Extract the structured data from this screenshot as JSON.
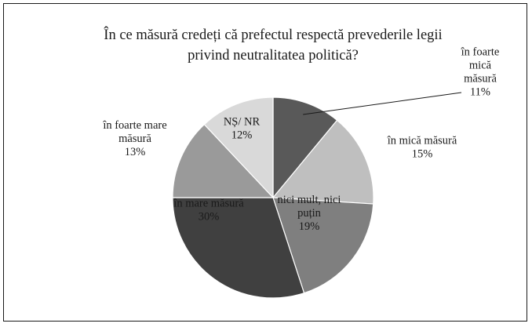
{
  "chart_data": {
    "type": "pie",
    "title": "În ce măsură credeți că prefectul respectă prevederile legii privind neutralitatea politică?",
    "title_lines": [
      "În ce măsură credeți că prefectul respectă prevederile legii",
      "privind neutralitatea politică?"
    ],
    "slices": [
      {
        "label": "în foarte mică măsură",
        "label_lines": [
          "în foarte",
          "mică",
          "măsură"
        ],
        "value": 11,
        "value_label": "11%",
        "color": "#595959"
      },
      {
        "label": "în mică măsură",
        "label_lines": [
          "în mică măsură"
        ],
        "value": 15,
        "value_label": "15%",
        "color": "#bfbfbf"
      },
      {
        "label": "nici mult, nici puțin",
        "label_lines": [
          "nici mult, nici",
          "puțin"
        ],
        "value": 19,
        "value_label": "19%",
        "color": "#7f7f7f"
      },
      {
        "label": "în mare măsură",
        "label_lines": [
          "în mare măsură"
        ],
        "value": 30,
        "value_label": "30%",
        "color": "#404040"
      },
      {
        "label": "în foarte mare măsură",
        "label_lines": [
          "în foarte mare",
          "măsură"
        ],
        "value": 13,
        "value_label": "13%",
        "color": "#9a9a9a"
      },
      {
        "label": "NȘ/ NR",
        "label_lines": [
          "NȘ/ NR"
        ],
        "value": 12,
        "value_label": "12%",
        "color": "#d9d9d9"
      }
    ],
    "legend": "none"
  }
}
